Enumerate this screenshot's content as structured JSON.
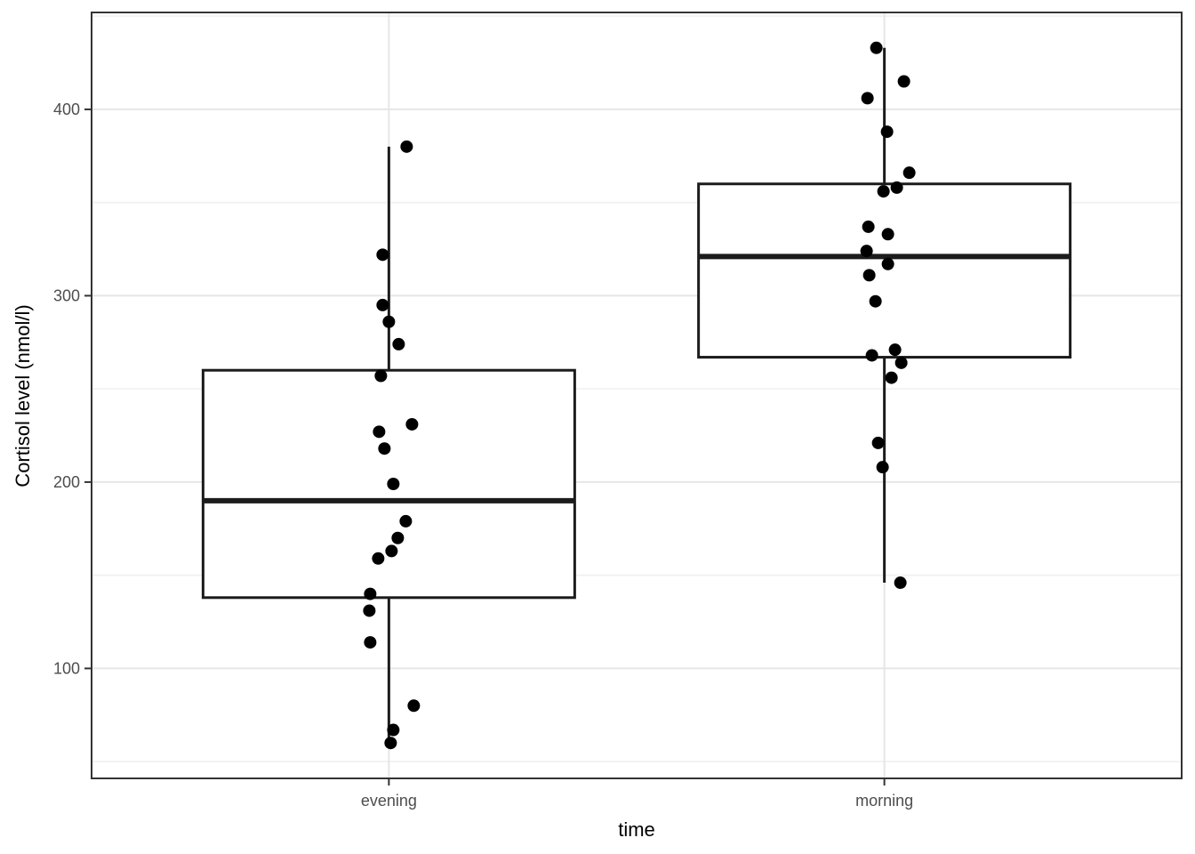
{
  "chart_data": {
    "type": "boxplot",
    "title": "",
    "xlabel": "time",
    "ylabel": "Cortisol level (nmol/l)",
    "categories": [
      "evening",
      "morning"
    ],
    "ylim": [
      41,
      452
    ],
    "y_major_ticks": [
      100,
      200,
      300,
      400
    ],
    "y_minor_gridlines": [
      50,
      150,
      250,
      350,
      450
    ],
    "grid": "major+minor horizontal, major vertical at categories",
    "legend_position": "none",
    "series": [
      {
        "name": "evening",
        "stats": {
          "min": 60,
          "q1": 138,
          "median": 190,
          "q3": 260,
          "max": 380
        },
        "points": [
          [
            20,
            380
          ],
          [
            -7,
            322
          ],
          [
            -7,
            295
          ],
          [
            0,
            286
          ],
          [
            11,
            274
          ],
          [
            -9,
            257
          ],
          [
            26,
            231
          ],
          [
            -11,
            227
          ],
          [
            -5,
            218
          ],
          [
            5,
            199
          ],
          [
            19,
            179
          ],
          [
            10,
            170
          ],
          [
            3,
            163
          ],
          [
            -12,
            159
          ],
          [
            -21,
            140
          ],
          [
            -22,
            131
          ],
          [
            -21,
            114
          ],
          [
            28,
            80
          ],
          [
            5,
            67
          ],
          [
            2,
            60
          ]
        ]
      },
      {
        "name": "morning",
        "stats": {
          "min": 146,
          "q1": 267,
          "median": 321,
          "q3": 360,
          "max": 433
        },
        "points": [
          [
            -9,
            433
          ],
          [
            22,
            415
          ],
          [
            -19,
            406
          ],
          [
            3,
            388
          ],
          [
            28,
            366
          ],
          [
            14,
            358
          ],
          [
            -1,
            356
          ],
          [
            -18,
            337
          ],
          [
            4,
            333
          ],
          [
            -20,
            324
          ],
          [
            4,
            317
          ],
          [
            -17,
            311
          ],
          [
            -10,
            297
          ],
          [
            12,
            271
          ],
          [
            -14,
            268
          ],
          [
            19,
            264
          ],
          [
            8,
            256
          ],
          [
            -7,
            221
          ],
          [
            -2,
            208
          ],
          [
            18,
            146
          ]
        ]
      }
    ],
    "colors": {
      "background": "#ffffff",
      "point": "#000000",
      "box_border": "#1c1c1c",
      "box_fill": "#ffffff",
      "median": "#1c1c1c",
      "whisker": "#1c1c1c",
      "panel_border": "#333333",
      "grid_major": "#e6e6e6",
      "grid_minor": "#f2f2f2",
      "tick_mark": "#333333",
      "tick_label": "#4d4d4d",
      "axis_title": "#000000"
    }
  }
}
